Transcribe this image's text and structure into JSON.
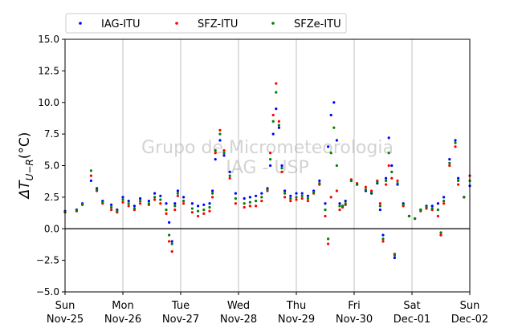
{
  "chart_data": {
    "type": "scatter",
    "ylabel": "ΔT_{U−R}(°C)",
    "ylim": [
      -5.0,
      15.0
    ],
    "yticks": [
      "−5.0",
      "−2.5",
      "0.0",
      "2.5",
      "5.0",
      "7.5",
      "10.0",
      "12.5",
      "15.0"
    ],
    "ytick_values": [
      -5.0,
      -2.5,
      0.0,
      2.5,
      5.0,
      7.5,
      10.0,
      12.5,
      15.0
    ],
    "xlim_days": [
      0,
      7
    ],
    "xticks": [
      {
        "day": "Sun",
        "date": "Nov-25"
      },
      {
        "day": "Mon",
        "date": "Nov-26"
      },
      {
        "day": "Tue",
        "date": "Nov-27"
      },
      {
        "day": "Wed",
        "date": "Nov-28"
      },
      {
        "day": "Thu",
        "date": "Nov-29"
      },
      {
        "day": "Fri",
        "date": "Nov-30"
      },
      {
        "day": "Sat",
        "date": "Dec-01"
      },
      {
        "day": "Sun",
        "date": "Dec-02"
      }
    ],
    "grid": "x-only",
    "zero_line": true,
    "legend_position": "top-left",
    "watermark": [
      "Grupo de Micrometeorologia",
      "IAG - USP"
    ],
    "series": [
      {
        "name": "IAG-ITU",
        "color": "#0000ff",
        "points": [
          [
            0.0,
            1.4
          ],
          [
            0.2,
            1.5
          ],
          [
            0.3,
            2.0
          ],
          [
            0.45,
            3.8
          ],
          [
            0.55,
            3.2
          ],
          [
            0.65,
            2.2
          ],
          [
            0.8,
            1.9
          ],
          [
            0.9,
            1.5
          ],
          [
            1.0,
            2.5
          ],
          [
            1.1,
            2.2
          ],
          [
            1.2,
            1.8
          ],
          [
            1.3,
            2.4
          ],
          [
            1.45,
            2.2
          ],
          [
            1.55,
            2.8
          ],
          [
            1.65,
            2.6
          ],
          [
            1.75,
            2.0
          ],
          [
            1.8,
            0.5
          ],
          [
            1.85,
            -1.0
          ],
          [
            1.9,
            2.0
          ],
          [
            1.95,
            3.0
          ],
          [
            2.05,
            2.5
          ],
          [
            2.2,
            2.0
          ],
          [
            2.3,
            1.8
          ],
          [
            2.4,
            1.9
          ],
          [
            2.5,
            2.0
          ],
          [
            2.55,
            3.0
          ],
          [
            2.6,
            5.5
          ],
          [
            2.68,
            7.0
          ],
          [
            2.75,
            5.8
          ],
          [
            2.85,
            4.5
          ],
          [
            2.95,
            2.8
          ],
          [
            3.1,
            2.4
          ],
          [
            3.2,
            2.5
          ],
          [
            3.3,
            2.6
          ],
          [
            3.4,
            2.8
          ],
          [
            3.5,
            3.2
          ],
          [
            3.55,
            5.0
          ],
          [
            3.6,
            7.5
          ],
          [
            3.65,
            9.5
          ],
          [
            3.7,
            8.0
          ],
          [
            3.75,
            5.0
          ],
          [
            3.8,
            3.0
          ],
          [
            3.9,
            2.6
          ],
          [
            4.0,
            2.8
          ],
          [
            4.1,
            2.8
          ],
          [
            4.2,
            2.6
          ],
          [
            4.3,
            3.0
          ],
          [
            4.4,
            3.8
          ],
          [
            4.5,
            2.0
          ],
          [
            4.55,
            6.5
          ],
          [
            4.6,
            9.0
          ],
          [
            4.65,
            10.0
          ],
          [
            4.7,
            7.0
          ],
          [
            4.75,
            2.0
          ],
          [
            4.8,
            1.8
          ],
          [
            4.85,
            2.2
          ],
          [
            4.95,
            3.8
          ],
          [
            5.05,
            3.5
          ],
          [
            5.2,
            3.0
          ],
          [
            5.3,
            2.8
          ],
          [
            5.4,
            3.6
          ],
          [
            5.45,
            1.5
          ],
          [
            5.5,
            -0.5
          ],
          [
            5.55,
            4.0
          ],
          [
            5.6,
            7.2
          ],
          [
            5.65,
            5.0
          ],
          [
            5.7,
            -2.3
          ],
          [
            5.75,
            3.5
          ],
          [
            5.85,
            2.0
          ],
          [
            5.95,
            1.0
          ],
          [
            6.05,
            0.8
          ],
          [
            6.15,
            1.5
          ],
          [
            6.25,
            1.8
          ],
          [
            6.35,
            1.8
          ],
          [
            6.45,
            2.0
          ],
          [
            6.5,
            -0.5
          ],
          [
            6.55,
            2.5
          ],
          [
            6.65,
            5.5
          ],
          [
            6.75,
            7.0
          ],
          [
            6.8,
            4.0
          ],
          [
            6.9,
            2.5
          ],
          [
            7.0,
            3.4
          ]
        ]
      },
      {
        "name": "SFZ-ITU",
        "color": "#ff0000",
        "points": [
          [
            0.0,
            1.3
          ],
          [
            0.2,
            1.4
          ],
          [
            0.3,
            1.9
          ],
          [
            0.45,
            4.2
          ],
          [
            0.55,
            3.0
          ],
          [
            0.65,
            2.0
          ],
          [
            0.8,
            1.5
          ],
          [
            0.9,
            1.3
          ],
          [
            1.0,
            2.1
          ],
          [
            1.1,
            1.8
          ],
          [
            1.2,
            1.5
          ],
          [
            1.3,
            2.0
          ],
          [
            1.45,
            1.9
          ],
          [
            1.55,
            2.3
          ],
          [
            1.65,
            2.0
          ],
          [
            1.75,
            1.2
          ],
          [
            1.8,
            -1.0
          ],
          [
            1.85,
            -1.8
          ],
          [
            1.9,
            1.5
          ],
          [
            1.95,
            2.6
          ],
          [
            2.05,
            2.0
          ],
          [
            2.2,
            1.3
          ],
          [
            2.3,
            1.0
          ],
          [
            2.4,
            1.2
          ],
          [
            2.5,
            1.4
          ],
          [
            2.55,
            2.5
          ],
          [
            2.6,
            6.0
          ],
          [
            2.68,
            7.8
          ],
          [
            2.75,
            6.2
          ],
          [
            2.85,
            4.0
          ],
          [
            2.95,
            2.0
          ],
          [
            3.1,
            1.7
          ],
          [
            3.2,
            1.8
          ],
          [
            3.3,
            1.8
          ],
          [
            3.4,
            2.2
          ],
          [
            3.5,
            3.0
          ],
          [
            3.55,
            6.0
          ],
          [
            3.6,
            9.0
          ],
          [
            3.65,
            11.5
          ],
          [
            3.7,
            8.5
          ],
          [
            3.75,
            4.5
          ],
          [
            3.8,
            2.5
          ],
          [
            3.9,
            2.2
          ],
          [
            4.0,
            2.3
          ],
          [
            4.1,
            2.4
          ],
          [
            4.2,
            2.2
          ],
          [
            4.3,
            2.8
          ],
          [
            4.4,
            3.5
          ],
          [
            4.5,
            1.0
          ],
          [
            4.55,
            -1.2
          ],
          [
            4.6,
            2.5
          ],
          [
            4.7,
            3.0
          ],
          [
            4.75,
            1.5
          ],
          [
            4.8,
            1.7
          ],
          [
            4.85,
            1.9
          ],
          [
            4.95,
            3.9
          ],
          [
            5.05,
            3.6
          ],
          [
            5.2,
            3.3
          ],
          [
            5.3,
            3.0
          ],
          [
            5.4,
            3.8
          ],
          [
            5.45,
            2.0
          ],
          [
            5.5,
            -1.0
          ],
          [
            5.55,
            3.5
          ],
          [
            5.6,
            5.0
          ],
          [
            5.65,
            4.0
          ],
          [
            5.7,
            -2.0
          ],
          [
            5.75,
            3.8
          ],
          [
            5.85,
            1.8
          ],
          [
            5.95,
            1.0
          ],
          [
            6.05,
            0.8
          ],
          [
            6.15,
            1.4
          ],
          [
            6.25,
            1.6
          ],
          [
            6.35,
            1.5
          ],
          [
            6.45,
            1.0
          ],
          [
            6.5,
            -0.5
          ],
          [
            6.55,
            2.0
          ],
          [
            6.65,
            5.0
          ],
          [
            6.75,
            6.5
          ],
          [
            6.8,
            3.5
          ],
          [
            6.9,
            2.5
          ],
          [
            7.0,
            4.2
          ]
        ]
      },
      {
        "name": "SFZe-ITU",
        "color": "#008000",
        "points": [
          [
            0.0,
            1.35
          ],
          [
            0.2,
            1.45
          ],
          [
            0.3,
            1.95
          ],
          [
            0.45,
            4.6
          ],
          [
            0.55,
            3.1
          ],
          [
            0.65,
            2.1
          ],
          [
            0.8,
            1.7
          ],
          [
            0.9,
            1.4
          ],
          [
            1.0,
            2.3
          ],
          [
            1.1,
            2.0
          ],
          [
            1.2,
            1.6
          ],
          [
            1.3,
            2.2
          ],
          [
            1.45,
            2.0
          ],
          [
            1.55,
            2.5
          ],
          [
            1.65,
            2.3
          ],
          [
            1.75,
            1.5
          ],
          [
            1.8,
            -0.5
          ],
          [
            1.85,
            -1.2
          ],
          [
            1.9,
            1.8
          ],
          [
            1.95,
            2.8
          ],
          [
            2.05,
            2.2
          ],
          [
            2.2,
            1.6
          ],
          [
            2.3,
            1.4
          ],
          [
            2.4,
            1.5
          ],
          [
            2.5,
            1.7
          ],
          [
            2.55,
            2.8
          ],
          [
            2.6,
            6.2
          ],
          [
            2.68,
            7.5
          ],
          [
            2.75,
            6.0
          ],
          [
            2.85,
            4.2
          ],
          [
            2.95,
            2.4
          ],
          [
            3.1,
            2.0
          ],
          [
            3.2,
            2.1
          ],
          [
            3.3,
            2.2
          ],
          [
            3.4,
            2.5
          ],
          [
            3.5,
            3.1
          ],
          [
            3.55,
            5.5
          ],
          [
            3.6,
            8.5
          ],
          [
            3.65,
            10.8
          ],
          [
            3.7,
            8.2
          ],
          [
            3.75,
            4.8
          ],
          [
            3.8,
            2.8
          ],
          [
            3.9,
            2.4
          ],
          [
            4.0,
            2.5
          ],
          [
            4.1,
            2.6
          ],
          [
            4.2,
            2.4
          ],
          [
            4.3,
            2.9
          ],
          [
            4.4,
            3.6
          ],
          [
            4.5,
            1.5
          ],
          [
            4.55,
            -0.8
          ],
          [
            4.6,
            6.0
          ],
          [
            4.65,
            8.0
          ],
          [
            4.7,
            5.0
          ],
          [
            4.75,
            1.8
          ],
          [
            4.8,
            1.8
          ],
          [
            4.85,
            2.0
          ],
          [
            4.95,
            3.8
          ],
          [
            5.05,
            3.5
          ],
          [
            5.2,
            3.1
          ],
          [
            5.3,
            2.9
          ],
          [
            5.4,
            3.7
          ],
          [
            5.45,
            1.8
          ],
          [
            5.5,
            -0.8
          ],
          [
            5.55,
            3.8
          ],
          [
            5.6,
            6.0
          ],
          [
            5.65,
            4.5
          ],
          [
            5.7,
            -2.1
          ],
          [
            5.75,
            3.6
          ],
          [
            5.85,
            1.9
          ],
          [
            5.95,
            1.0
          ],
          [
            6.05,
            0.8
          ],
          [
            6.15,
            1.5
          ],
          [
            6.25,
            1.7
          ],
          [
            6.35,
            1.6
          ],
          [
            6.45,
            1.5
          ],
          [
            6.5,
            -0.3
          ],
          [
            6.55,
            2.2
          ],
          [
            6.65,
            5.2
          ],
          [
            6.75,
            6.8
          ],
          [
            6.8,
            3.8
          ],
          [
            6.9,
            2.5
          ],
          [
            7.0,
            3.8
          ]
        ]
      }
    ]
  }
}
